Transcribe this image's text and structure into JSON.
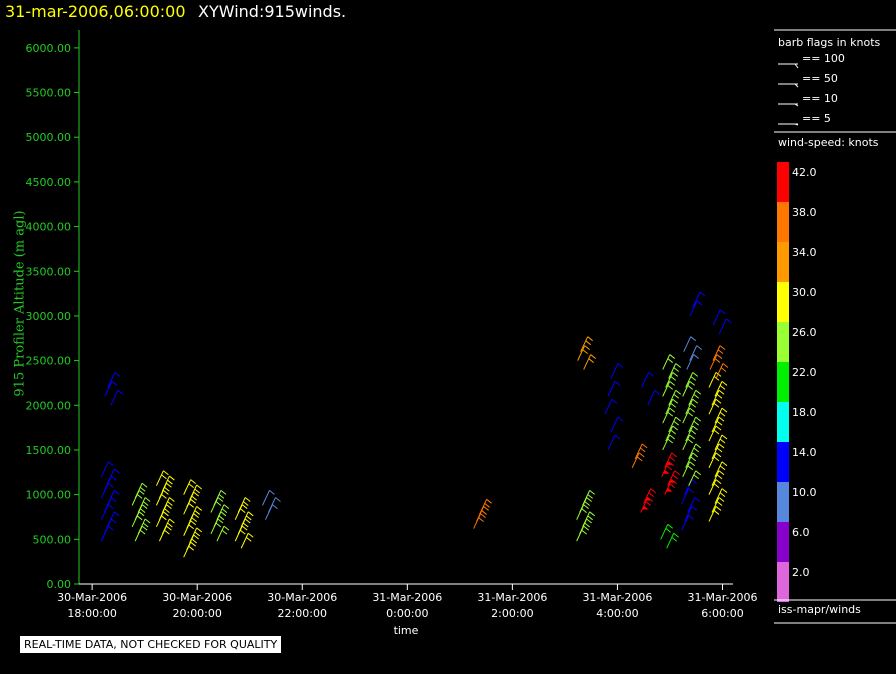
{
  "header": {
    "datetime": "31-mar-2006,06:00:00",
    "product": "XYWind:915winds."
  },
  "warning": "REAL-TIME DATA, NOT CHECKED FOR QUALITY",
  "sidebar": {
    "barb_title": "barb flags in knots",
    "barb_legend": [
      "== 100",
      "== 50",
      "== 10",
      "== 5"
    ],
    "speed_title": "wind-speed: knots",
    "colorbar": [
      {
        "label": "42.0",
        "color": "#ff0000"
      },
      {
        "label": "38.0",
        "color": "#ff7700"
      },
      {
        "label": "34.0",
        "color": "#ff9900"
      },
      {
        "label": "30.0",
        "color": "#ffff00"
      },
      {
        "label": "26.0",
        "color": "#99ff33"
      },
      {
        "label": "22.0",
        "color": "#00ee00"
      },
      {
        "label": "18.0",
        "color": "#00ffee"
      },
      {
        "label": "14.0",
        "color": "#0000ff"
      },
      {
        "label": "10.0",
        "color": "#5588dd"
      },
      {
        "label": "6.0",
        "color": "#8800cc"
      },
      {
        "label": "2.0",
        "color": "#dd66dd"
      }
    ],
    "source": "iss-mapr/winds"
  },
  "chart_data": {
    "type": "scatter",
    "ylabel": "915 Profiler Altitude (m agl)",
    "xlabel": "time",
    "ylim": [
      0,
      6200
    ],
    "yticks": [
      "0.00",
      "500.00",
      "1000.00",
      "1500.00",
      "2000.00",
      "2500.00",
      "3000.00",
      "3500.00",
      "4000.00",
      "4500.00",
      "5000.00",
      "5500.00",
      "6000.00"
    ],
    "xlim_hours": [
      17.75,
      30.2
    ],
    "xticks": [
      {
        "hour": 18,
        "date": "30-Mar-2006",
        "time": "18:00:00"
      },
      {
        "hour": 20,
        "date": "30-Mar-2006",
        "time": "20:00:00"
      },
      {
        "hour": 22,
        "date": "30-Mar-2006",
        "time": "22:00:00"
      },
      {
        "hour": 24,
        "date": "31-Mar-2006",
        "time": "0:00:00"
      },
      {
        "hour": 26,
        "date": "31-Mar-2006",
        "time": "2:00:00"
      },
      {
        "hour": 28,
        "date": "31-Mar-2006",
        "time": "4:00:00"
      },
      {
        "hour": 30,
        "date": "31-Mar-2006",
        "time": "6:00:00"
      }
    ],
    "profiles": [
      {
        "hour": 18.25,
        "alts": [
          480,
          560,
          640,
          720,
          800,
          880,
          960,
          1040,
          1120,
          1200
        ],
        "speed": 14
      },
      {
        "hour": 18.3,
        "alts": [
          2000,
          2100,
          2200
        ],
        "speed": 14
      },
      {
        "hour": 18.8,
        "alts": [
          480,
          560,
          640,
          720,
          800,
          880,
          960
        ],
        "speed": 24
      },
      {
        "hour": 19.3,
        "alts": [
          480,
          560,
          640,
          720,
          800,
          880,
          960,
          1040,
          1100
        ],
        "speed": 29
      },
      {
        "hour": 19.8,
        "alts": [
          300,
          380,
          460,
          540,
          620,
          700,
          780,
          860,
          940,
          1000
        ],
        "speed": 28
      },
      {
        "hour": 20.3,
        "alts": [
          480,
          560,
          640,
          720,
          800,
          880
        ],
        "speed": 27
      },
      {
        "hour": 20.8,
        "alts": [
          400,
          480,
          560,
          640,
          720,
          800
        ],
        "speed": 28
      },
      {
        "hour": 21.3,
        "alts": [
          720,
          800,
          880
        ],
        "speed": 8
      },
      {
        "hour": 25.3,
        "alts": [
          620,
          700,
          780
        ],
        "speed": 36
      },
      {
        "hour": 27.3,
        "alts": [
          480,
          560,
          640,
          720,
          800,
          880
        ],
        "speed": 25
      },
      {
        "hour": 27.3,
        "alts": [
          2400,
          2500,
          2600
        ],
        "speed": 34
      },
      {
        "hour": 27.8,
        "alts": [
          1500,
          1700,
          1900,
          2100,
          2300
        ],
        "speed": 15
      },
      {
        "hour": 28.3,
        "alts": [
          1300,
          1400
        ],
        "speed": 36
      },
      {
        "hour": 28.5,
        "alts": [
          800,
          900
        ],
        "speed": 42
      },
      {
        "hour": 28.5,
        "alts": [
          2000,
          2200
        ],
        "speed": 15
      },
      {
        "hour": 28.9,
        "alts": [
          400,
          500
        ],
        "speed": 23
      },
      {
        "hour": 28.9,
        "alts": [
          1000,
          1100,
          1200,
          1300
        ],
        "speed": 41
      },
      {
        "hour": 28.9,
        "alts": [
          1500,
          1600,
          1700,
          1800,
          1900,
          2000,
          2100,
          2200,
          2300,
          2400
        ],
        "speed": 26
      },
      {
        "hour": 29.3,
        "alts": [
          600,
          700,
          800,
          900,
          1000
        ],
        "speed": 15
      },
      {
        "hour": 29.3,
        "alts": [
          1100,
          1200,
          1300,
          1400,
          1500,
          1600,
          1700,
          1800,
          1900,
          2000,
          2100,
          2200
        ],
        "speed": 27
      },
      {
        "hour": 29.3,
        "alts": [
          2400,
          2500,
          2600
        ],
        "speed": 8
      },
      {
        "hour": 29.4,
        "alts": [
          3000,
          3100
        ],
        "speed": 14
      },
      {
        "hour": 29.8,
        "alts": [
          700,
          800,
          900,
          1000,
          1100,
          1200,
          1300,
          1400,
          1500,
          1600,
          1700,
          1800,
          1900,
          2000,
          2100,
          2200
        ],
        "speed": 30
      },
      {
        "hour": 29.8,
        "alts": [
          2300,
          2400,
          2500
        ],
        "speed": 36
      },
      {
        "hour": 29.9,
        "alts": [
          2800,
          2900
        ],
        "speed": 14
      }
    ]
  }
}
